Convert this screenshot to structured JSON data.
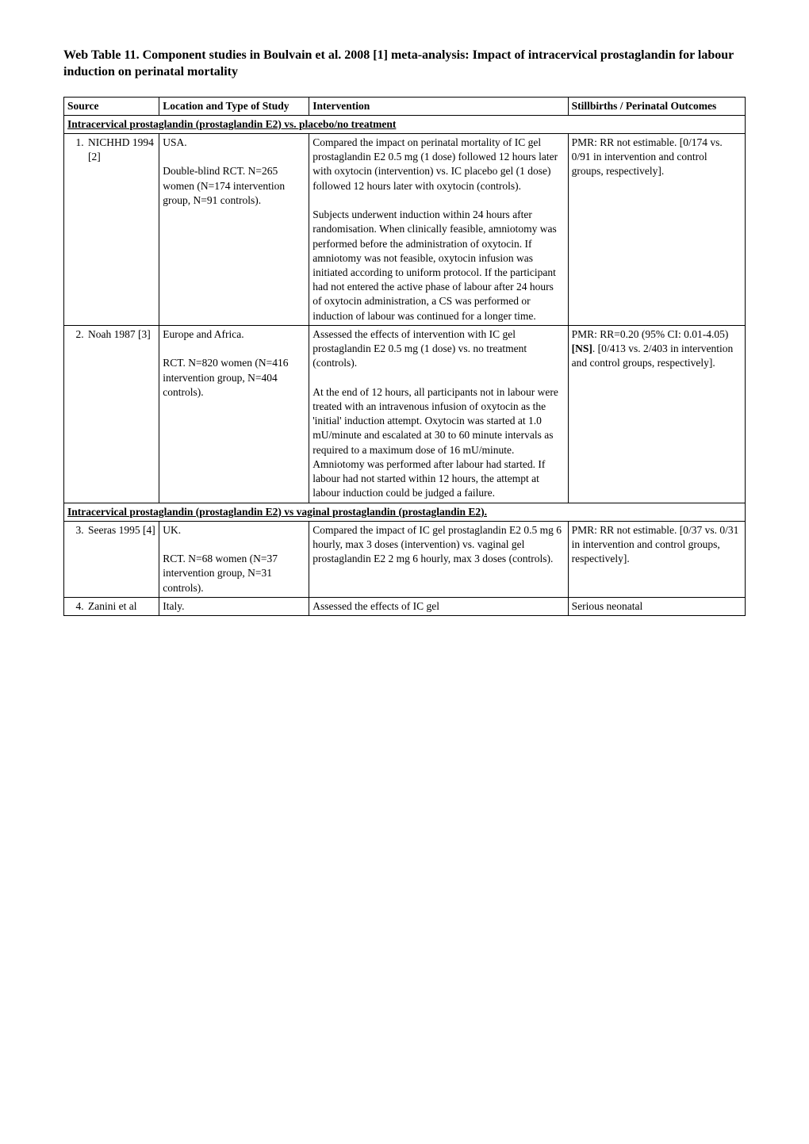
{
  "title": "Web Table 11. Component studies in Boulvain et al. 2008 [1] meta-analysis: Impact of intracervical prostaglandin for labour induction on perinatal mortality",
  "headers": {
    "source": "Source",
    "location": "Location and Type of Study",
    "intervention": "Intervention",
    "outcomes": "Stillbirths / Perinatal Outcomes"
  },
  "section1": "Intracervical prostaglandin (prostaglandin E2) vs. placebo/no treatment",
  "row1": {
    "num": "1.",
    "source": "NICHHD 1994 [2]",
    "location": "USA.\n\nDouble-blind RCT. N=265 women (N=174 intervention group, N=91 controls).",
    "intervention": "Compared the impact on perinatal mortality of IC gel prostaglandin E2 0.5 mg (1 dose) followed 12 hours later with oxytocin (intervention) vs. IC placebo gel (1 dose) followed 12 hours later with oxytocin (controls).\n\nSubjects underwent induction within 24 hours after randomisation. When clinically feasible, amniotomy was performed before the administration of oxytocin. If amniotomy was not feasible, oxytocin infusion was initiated according to uniform protocol. If the participant had not entered the active phase of labour after 24 hours of oxytocin administration, a CS was performed or induction of labour was continued for a longer time.",
    "outcomes": "PMR: RR not estimable. [0/174 vs. 0/91 in intervention and control groups, respectively]."
  },
  "row2": {
    "num": "2.",
    "source": "Noah 1987 [3]",
    "location": "Europe and Africa.\n\nRCT. N=820 women (N=416 intervention group, N=404 controls).",
    "intervention": "Assessed the effects of intervention with IC gel prostaglandin E2 0.5 mg (1 dose) vs. no treatment (controls).\n\nAt the end of 12 hours, all participants not in labour were treated with an intravenous infusion of oxytocin as the 'initial' induction attempt. Oxytocin was started at 1.0 mU/minute and escalated at 30 to 60 minute intervals as required to a maximum dose of 16 mU/minute. Amniotomy was performed after labour had started. If labour had not started within 12 hours, the attempt at labour induction could be judged a failure.",
    "outcomes_pre": "PMR: RR=0.20 (95% CI: 0.01-4.05) ",
    "outcomes_bold": "[NS]",
    "outcomes_post": ". [0/413 vs. 2/403 in intervention and control groups, respectively]."
  },
  "section2": "Intracervical prostaglandin (prostaglandin E2) vs vaginal prostaglandin (prostaglandin E2).",
  "row3": {
    "num": "3.",
    "source": "Seeras 1995 [4]",
    "location": "UK.\n\nRCT. N=68 women (N=37 intervention group, N=31 controls).",
    "intervention": "Compared the impact of IC gel prostaglandin E2 0.5 mg 6 hourly, max 3 doses (intervention) vs. vaginal gel prostaglandin E2 2 mg 6 hourly, max 3 doses (controls).",
    "outcomes": "PMR: RR not estimable. [0/37 vs. 0/31 in intervention and control groups, respectively]."
  },
  "row4": {
    "num": "4.",
    "source": "Zanini et al",
    "location": "Italy.",
    "intervention": "Assessed the effects of IC gel",
    "outcomes": "Serious neonatal"
  }
}
